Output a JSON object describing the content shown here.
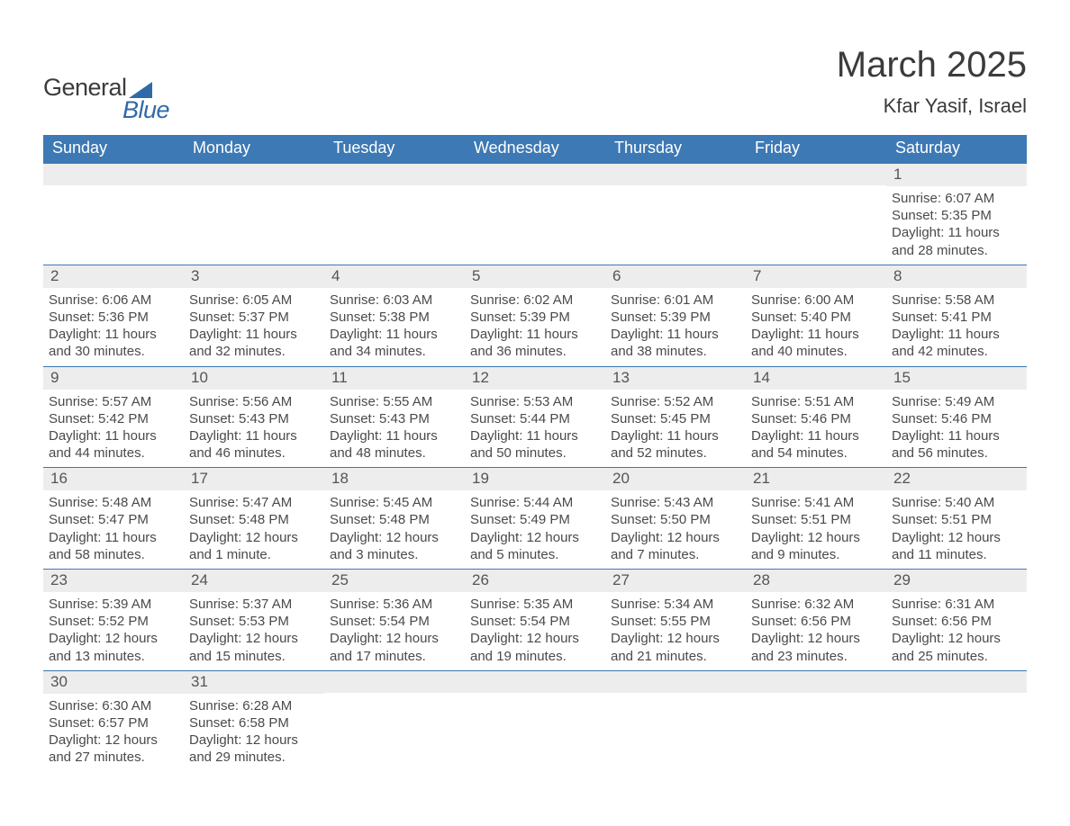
{
  "logo": {
    "word1": "General",
    "word2": "Blue",
    "accent_color": "#2f6aa8"
  },
  "title": "March 2025",
  "location": "Kfar Yasif, Israel",
  "colors": {
    "header_bg": "#3d79b4",
    "header_text": "#ffffff",
    "strip_bg": "#ededed",
    "body_text": "#4a4a4a",
    "rule": "#3d79b4",
    "background": "#ffffff"
  },
  "fonts": {
    "title_size": 40,
    "location_size": 22,
    "dow_size": 18,
    "daynum_size": 17,
    "body_size": 15
  },
  "days_of_week": [
    "Sunday",
    "Monday",
    "Tuesday",
    "Wednesday",
    "Thursday",
    "Friday",
    "Saturday"
  ],
  "weeks": [
    [
      null,
      null,
      null,
      null,
      null,
      null,
      {
        "n": "1",
        "sunrise": "6:07 AM",
        "sunset": "5:35 PM",
        "daylight": "11 hours and 28 minutes."
      }
    ],
    [
      {
        "n": "2",
        "sunrise": "6:06 AM",
        "sunset": "5:36 PM",
        "daylight": "11 hours and 30 minutes."
      },
      {
        "n": "3",
        "sunrise": "6:05 AM",
        "sunset": "5:37 PM",
        "daylight": "11 hours and 32 minutes."
      },
      {
        "n": "4",
        "sunrise": "6:03 AM",
        "sunset": "5:38 PM",
        "daylight": "11 hours and 34 minutes."
      },
      {
        "n": "5",
        "sunrise": "6:02 AM",
        "sunset": "5:39 PM",
        "daylight": "11 hours and 36 minutes."
      },
      {
        "n": "6",
        "sunrise": "6:01 AM",
        "sunset": "5:39 PM",
        "daylight": "11 hours and 38 minutes."
      },
      {
        "n": "7",
        "sunrise": "6:00 AM",
        "sunset": "5:40 PM",
        "daylight": "11 hours and 40 minutes."
      },
      {
        "n": "8",
        "sunrise": "5:58 AM",
        "sunset": "5:41 PM",
        "daylight": "11 hours and 42 minutes."
      }
    ],
    [
      {
        "n": "9",
        "sunrise": "5:57 AM",
        "sunset": "5:42 PM",
        "daylight": "11 hours and 44 minutes."
      },
      {
        "n": "10",
        "sunrise": "5:56 AM",
        "sunset": "5:43 PM",
        "daylight": "11 hours and 46 minutes."
      },
      {
        "n": "11",
        "sunrise": "5:55 AM",
        "sunset": "5:43 PM",
        "daylight": "11 hours and 48 minutes."
      },
      {
        "n": "12",
        "sunrise": "5:53 AM",
        "sunset": "5:44 PM",
        "daylight": "11 hours and 50 minutes."
      },
      {
        "n": "13",
        "sunrise": "5:52 AM",
        "sunset": "5:45 PM",
        "daylight": "11 hours and 52 minutes."
      },
      {
        "n": "14",
        "sunrise": "5:51 AM",
        "sunset": "5:46 PM",
        "daylight": "11 hours and 54 minutes."
      },
      {
        "n": "15",
        "sunrise": "5:49 AM",
        "sunset": "5:46 PM",
        "daylight": "11 hours and 56 minutes."
      }
    ],
    [
      {
        "n": "16",
        "sunrise": "5:48 AM",
        "sunset": "5:47 PM",
        "daylight": "11 hours and 58 minutes."
      },
      {
        "n": "17",
        "sunrise": "5:47 AM",
        "sunset": "5:48 PM",
        "daylight": "12 hours and 1 minute."
      },
      {
        "n": "18",
        "sunrise": "5:45 AM",
        "sunset": "5:48 PM",
        "daylight": "12 hours and 3 minutes."
      },
      {
        "n": "19",
        "sunrise": "5:44 AM",
        "sunset": "5:49 PM",
        "daylight": "12 hours and 5 minutes."
      },
      {
        "n": "20",
        "sunrise": "5:43 AM",
        "sunset": "5:50 PM",
        "daylight": "12 hours and 7 minutes."
      },
      {
        "n": "21",
        "sunrise": "5:41 AM",
        "sunset": "5:51 PM",
        "daylight": "12 hours and 9 minutes."
      },
      {
        "n": "22",
        "sunrise": "5:40 AM",
        "sunset": "5:51 PM",
        "daylight": "12 hours and 11 minutes."
      }
    ],
    [
      {
        "n": "23",
        "sunrise": "5:39 AM",
        "sunset": "5:52 PM",
        "daylight": "12 hours and 13 minutes."
      },
      {
        "n": "24",
        "sunrise": "5:37 AM",
        "sunset": "5:53 PM",
        "daylight": "12 hours and 15 minutes."
      },
      {
        "n": "25",
        "sunrise": "5:36 AM",
        "sunset": "5:54 PM",
        "daylight": "12 hours and 17 minutes."
      },
      {
        "n": "26",
        "sunrise": "5:35 AM",
        "sunset": "5:54 PM",
        "daylight": "12 hours and 19 minutes."
      },
      {
        "n": "27",
        "sunrise": "5:34 AM",
        "sunset": "5:55 PM",
        "daylight": "12 hours and 21 minutes."
      },
      {
        "n": "28",
        "sunrise": "6:32 AM",
        "sunset": "6:56 PM",
        "daylight": "12 hours and 23 minutes."
      },
      {
        "n": "29",
        "sunrise": "6:31 AM",
        "sunset": "6:56 PM",
        "daylight": "12 hours and 25 minutes."
      }
    ],
    [
      {
        "n": "30",
        "sunrise": "6:30 AM",
        "sunset": "6:57 PM",
        "daylight": "12 hours and 27 minutes."
      },
      {
        "n": "31",
        "sunrise": "6:28 AM",
        "sunset": "6:58 PM",
        "daylight": "12 hours and 29 minutes."
      },
      null,
      null,
      null,
      null,
      null
    ]
  ],
  "labels": {
    "sunrise": "Sunrise: ",
    "sunset": "Sunset: ",
    "daylight": "Daylight: "
  }
}
